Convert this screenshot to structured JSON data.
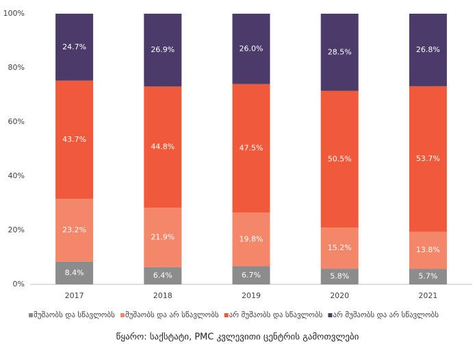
{
  "chart_data": {
    "type": "stacked_bar",
    "categories": [
      "2017",
      "2018",
      "2019",
      "2020",
      "2021"
    ],
    "series": [
      {
        "name": "მუშაობს და სწავლობს",
        "color": "#8c8c8c",
        "values": [
          8.4,
          6.4,
          6.7,
          5.8,
          5.7
        ],
        "value_labels": [
          "8.4%",
          "6.4%",
          "6.7%",
          "5.8%",
          "5.7%"
        ]
      },
      {
        "name": "მუშაობს და არ სწავლობს",
        "color": "#f4866a",
        "values": [
          23.2,
          21.9,
          19.8,
          15.2,
          13.8
        ],
        "value_labels": [
          "23.2%",
          "21.9%",
          "19.8%",
          "15.2%",
          "13.8%"
        ]
      },
      {
        "name": "არ მუშაობს და სწავლობს",
        "color": "#f05a3a",
        "values": [
          43.7,
          44.8,
          47.5,
          50.5,
          53.7
        ],
        "value_labels": [
          "43.7%",
          "44.8%",
          "47.5%",
          "50.5%",
          "53.7%"
        ]
      },
      {
        "name": "არ მუშაობს და არ სწავლობს",
        "color": "#4b3b6b",
        "values": [
          24.7,
          26.9,
          26.0,
          28.5,
          26.8
        ],
        "value_labels": [
          "24.7%",
          "26.9%",
          "26.0%",
          "28.5%",
          "26.8%"
        ]
      }
    ],
    "ylim": [
      0,
      100
    ],
    "yticks": [
      {
        "value": 0,
        "label": "0%"
      },
      {
        "value": 20,
        "label": "20%"
      },
      {
        "value": 40,
        "label": "40%"
      },
      {
        "value": 60,
        "label": "60%"
      },
      {
        "value": 80,
        "label": "80%"
      },
      {
        "value": 100,
        "label": "100%"
      }
    ],
    "legend": "bottom",
    "source": "წყარო: საქსტატი, PMC კვლევითი ცენტრის გამოთვლები"
  }
}
